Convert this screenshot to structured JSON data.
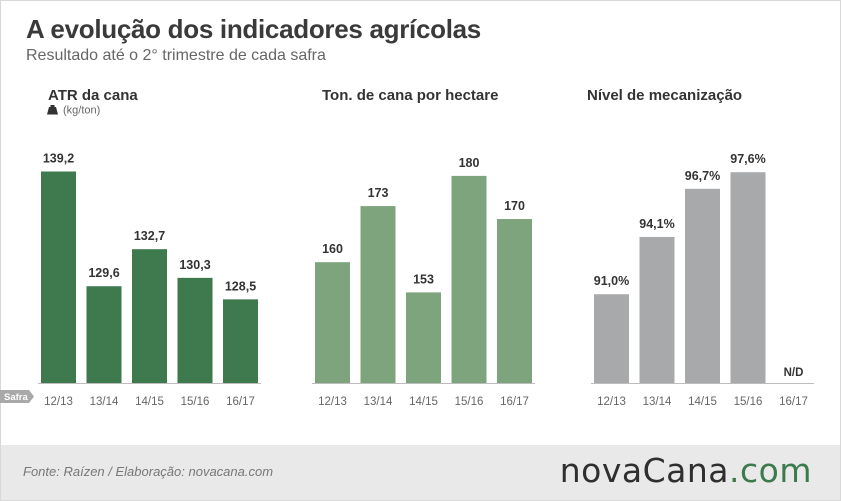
{
  "header": {
    "title": "A evolução dos indicadores agrícolas",
    "subtitle": "Resultado até o 2° trimestre de cada safra"
  },
  "footer": {
    "source": "Fonte: Raízen / Elaboração: novacana.com",
    "logo_main": "novaCana",
    "logo_dot": ".",
    "logo_com": "com"
  },
  "axis_tag": "Safra",
  "chart_data": [
    {
      "type": "bar",
      "title": "ATR da cana",
      "unit": "(kg/ton)",
      "unit_icon": "weight-icon",
      "color": "#3f7a4e",
      "categories": [
        "12/13",
        "13/14",
        "14/15",
        "15/16",
        "16/17"
      ],
      "values": [
        139.2,
        129.6,
        132.7,
        130.3,
        128.5
      ],
      "labels": [
        "139,2",
        "129,6",
        "132,7",
        "130,3",
        "128,5"
      ],
      "ylim": [
        121.5,
        141
      ]
    },
    {
      "type": "bar",
      "title": "Ton. de cana por hectare",
      "color": "#7ea47e",
      "categories": [
        "12/13",
        "13/14",
        "14/15",
        "15/16",
        "16/17"
      ],
      "values": [
        160,
        173,
        153,
        180,
        170
      ],
      "labels": [
        "160",
        "173",
        "153",
        "180",
        "170"
      ],
      "ylim": [
        132,
        186
      ]
    },
    {
      "type": "bar",
      "title": "Nível de mecanização",
      "color": "#a8a9ab",
      "categories": [
        "12/13",
        "13/14",
        "14/15",
        "15/16",
        "16/17"
      ],
      "values": [
        91.0,
        94.1,
        96.7,
        97.6,
        null
      ],
      "labels": [
        "91,0%",
        "94,1%",
        "96,7%",
        "97,6%",
        "N/D"
      ],
      "ylim": [
        86.2,
        98.8
      ]
    }
  ]
}
